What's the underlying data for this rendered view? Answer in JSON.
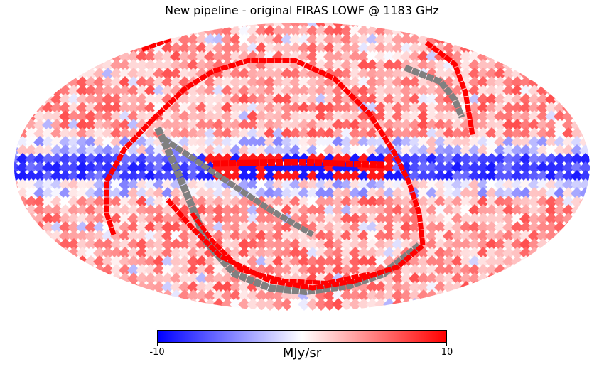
{
  "title": "New pipeline - original FIRAS LOWF @ 1183 GHz",
  "projection": "mollweide",
  "colors": {
    "negative": "#0000ff",
    "zero": "#ffffff",
    "positive": "#ff0000",
    "masked": "#808080"
  },
  "colorbar": {
    "min_label": "-10",
    "max_label": "10",
    "unit": "MJy/sr",
    "min": -10,
    "max": 10
  }
}
